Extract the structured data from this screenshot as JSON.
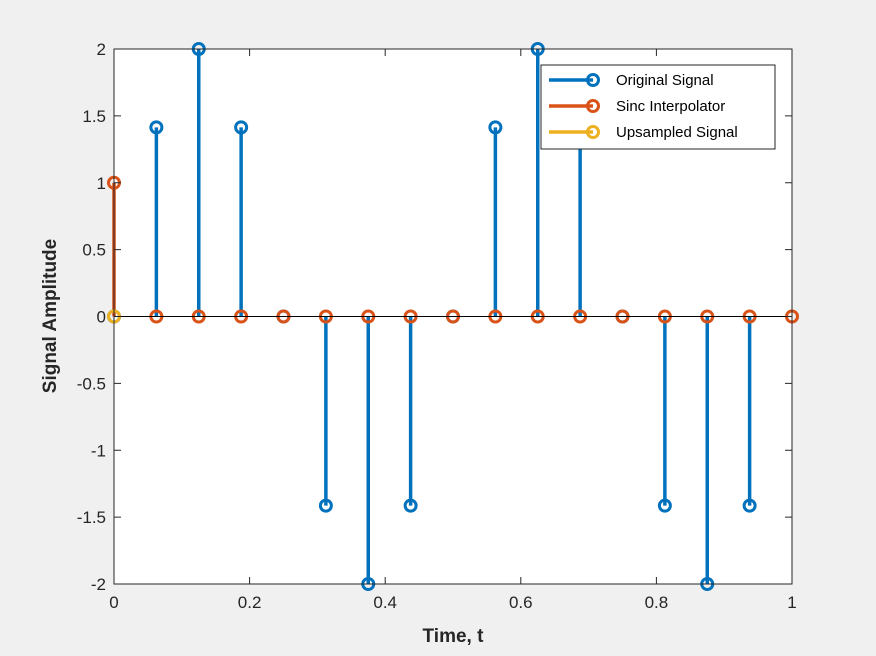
{
  "chart_data": {
    "type": "stem",
    "xlabel": "Time, t",
    "ylabel": "Signal Amplitude",
    "xlim": [
      0,
      1
    ],
    "ylim": [
      -2,
      2
    ],
    "xticks": [
      0,
      0.2,
      0.4,
      0.6,
      0.8,
      1
    ],
    "xtick_labels": [
      "0",
      "0.2",
      "0.4",
      "0.6",
      "0.8",
      "1"
    ],
    "yticks": [
      -2,
      -1.5,
      -1,
      -0.5,
      0,
      0.5,
      1,
      1.5,
      2
    ],
    "ytick_labels": [
      "-2",
      "-1.5",
      "-1",
      "-0.5",
      "0",
      "0.5",
      "1",
      "1.5",
      "2"
    ],
    "grid": false,
    "legend_position": "top-right",
    "series": [
      {
        "name": "Original Signal",
        "color": "#0072BD",
        "x": [
          0,
          0.0625,
          0.125,
          0.1875,
          0.25,
          0.3125,
          0.375,
          0.4375,
          0.5,
          0.5625,
          0.625,
          0.6875,
          0.75,
          0.8125,
          0.875,
          0.9375
        ],
        "y": [
          0,
          1.414,
          2,
          1.414,
          0,
          -1.414,
          -2,
          -1.414,
          0,
          1.414,
          2,
          1.414,
          0,
          -1.414,
          -2,
          -1.414
        ]
      },
      {
        "name": "Sinc Interpolator",
        "color": "#D95319",
        "x": [
          0,
          0.0625,
          0.125,
          0.1875,
          0.25,
          0.3125,
          0.375,
          0.4375,
          0.5,
          0.5625,
          0.625,
          0.6875,
          0.75,
          0.8125,
          0.875,
          0.9375,
          1
        ],
        "y": [
          1,
          0,
          0,
          0,
          0,
          0,
          0,
          0,
          0,
          0,
          0,
          0,
          0,
          0,
          0,
          0,
          0
        ]
      },
      {
        "name": "Upsampled Signal",
        "color": "#EDB120",
        "x": [
          0
        ],
        "y": [
          0
        ]
      }
    ]
  }
}
